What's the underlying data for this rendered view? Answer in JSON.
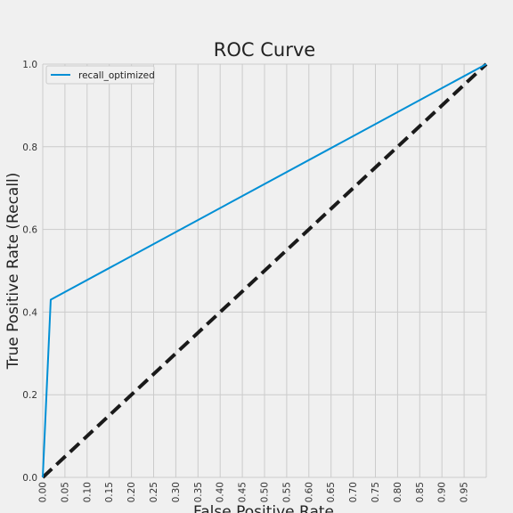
{
  "chart_data": {
    "type": "line",
    "title": "ROC Curve",
    "xlabel": "False Positive Rate",
    "ylabel": "True Positive Rate (Recall)",
    "xlim": [
      0,
      1
    ],
    "ylim": [
      0,
      1
    ],
    "grid": true,
    "legend_position": "top-left",
    "xticks": [
      "0.00",
      "0.05",
      "0.10",
      "0.15",
      "0.20",
      "0.25",
      "0.30",
      "0.35",
      "0.40",
      "0.45",
      "0.50",
      "0.55",
      "0.60",
      "0.65",
      "0.70",
      "0.75",
      "0.80",
      "0.85",
      "0.90",
      "0.95"
    ],
    "yticks": [
      "0.0",
      "0.2",
      "0.4",
      "0.6",
      "0.8",
      "1.0"
    ],
    "series": [
      {
        "name": "recall_optimized",
        "color": "#008fd5",
        "style": "solid",
        "x": [
          0.0,
          0.018,
          1.0
        ],
        "y": [
          0.0,
          0.43,
          1.0
        ]
      },
      {
        "color": "#1a1a1a",
        "style": "dashed",
        "x": [
          0.0,
          1.0
        ],
        "y": [
          0.0,
          1.0
        ]
      }
    ]
  }
}
